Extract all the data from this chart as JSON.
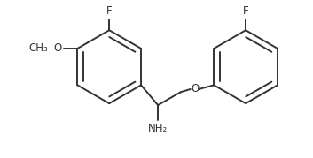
{
  "bg_color": "#ffffff",
  "line_color": "#333333",
  "label_color": "#333333",
  "lw": 1.4,
  "font_size": 8.5,
  "figsize": [
    3.53,
    1.79
  ],
  "dpi": 100,
  "xlim": [
    -1.8,
    6.8
  ],
  "ylim": [
    0.5,
    5.0
  ],
  "lcx": 1.15,
  "lcy": 3.1,
  "lr": 1.05,
  "rcx": 5.05,
  "rcy": 3.1,
  "rr": 1.05,
  "ao": 0
}
